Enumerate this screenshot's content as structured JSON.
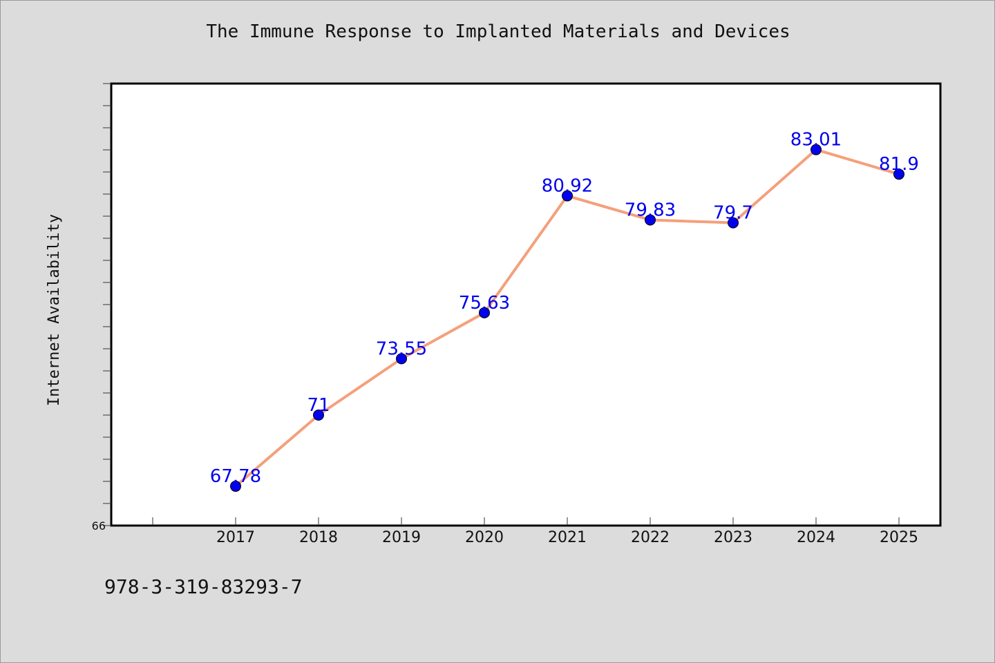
{
  "caption": "978-3-319-83293-7",
  "colors": {
    "background": "#dcdcdc",
    "plot_background": "#ffffff",
    "line": "#f4a07c",
    "marker": "#0000ee",
    "data_label": "#0000ee"
  },
  "chart_data": {
    "type": "line",
    "title": "The Immune Response to Implanted Materials and Devices",
    "xlabel": "",
    "ylabel": "Internet Availability",
    "categories": [
      "2017",
      "2018",
      "2019",
      "2020",
      "2021",
      "2022",
      "2023",
      "2024",
      "2025"
    ],
    "series": [
      {
        "values": [
          67.78,
          71,
          73.55,
          75.63,
          80.92,
          79.83,
          79.7,
          83.01,
          81.9
        ],
        "labels": [
          "67.78",
          "71",
          "73.55",
          "75.63",
          "80.92",
          "79.83",
          "79.7",
          "83.01",
          "81.9"
        ]
      }
    ],
    "ylim": [
      66,
      86
    ],
    "y_tick_labels": [
      "66"
    ],
    "y_minor_step": 1,
    "grid": false,
    "legend": "none"
  }
}
